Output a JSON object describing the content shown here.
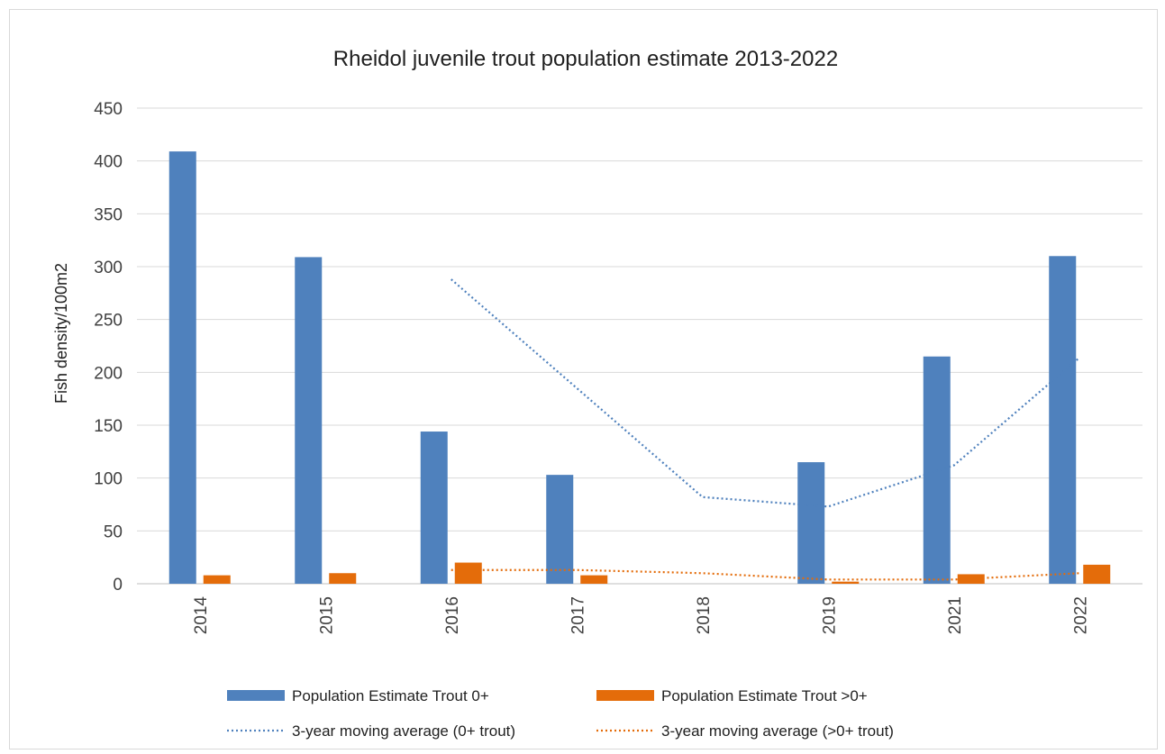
{
  "chart_data": {
    "type": "bar",
    "title": "Rheidol juvenile trout population estimate 2013-2022",
    "xlabel": "",
    "ylabel": "Fish density/100m2",
    "ylim": [
      0,
      450
    ],
    "yticks": [
      0,
      50,
      100,
      150,
      200,
      250,
      300,
      350,
      400,
      450
    ],
    "categories": [
      "2014",
      "2015",
      "2016",
      "2017",
      "2018",
      "2019",
      "2021",
      "2022"
    ],
    "grid": "horizontal",
    "legend_position": "bottom",
    "series": [
      {
        "name": "Population Estimate Trout 0+",
        "kind": "bar",
        "color": "#4f81bd",
        "values": [
          409,
          309,
          144,
          103,
          null,
          115,
          215,
          310
        ]
      },
      {
        "name": "Population Estimate Trout >0+",
        "kind": "bar",
        "color": "#e46c0a",
        "values": [
          8,
          10,
          20,
          8,
          null,
          2,
          9,
          18
        ]
      },
      {
        "name": "3-year moving average (0+ trout)",
        "kind": "dotted-line",
        "color": "#4f81bd",
        "values": [
          null,
          null,
          288,
          185,
          82,
          73,
          112,
          214
        ]
      },
      {
        "name": "3-year moving average (>0+ trout)",
        "kind": "dotted-line",
        "color": "#e46c0a",
        "values": [
          null,
          null,
          13,
          13,
          10,
          4,
          4,
          10
        ]
      }
    ]
  }
}
